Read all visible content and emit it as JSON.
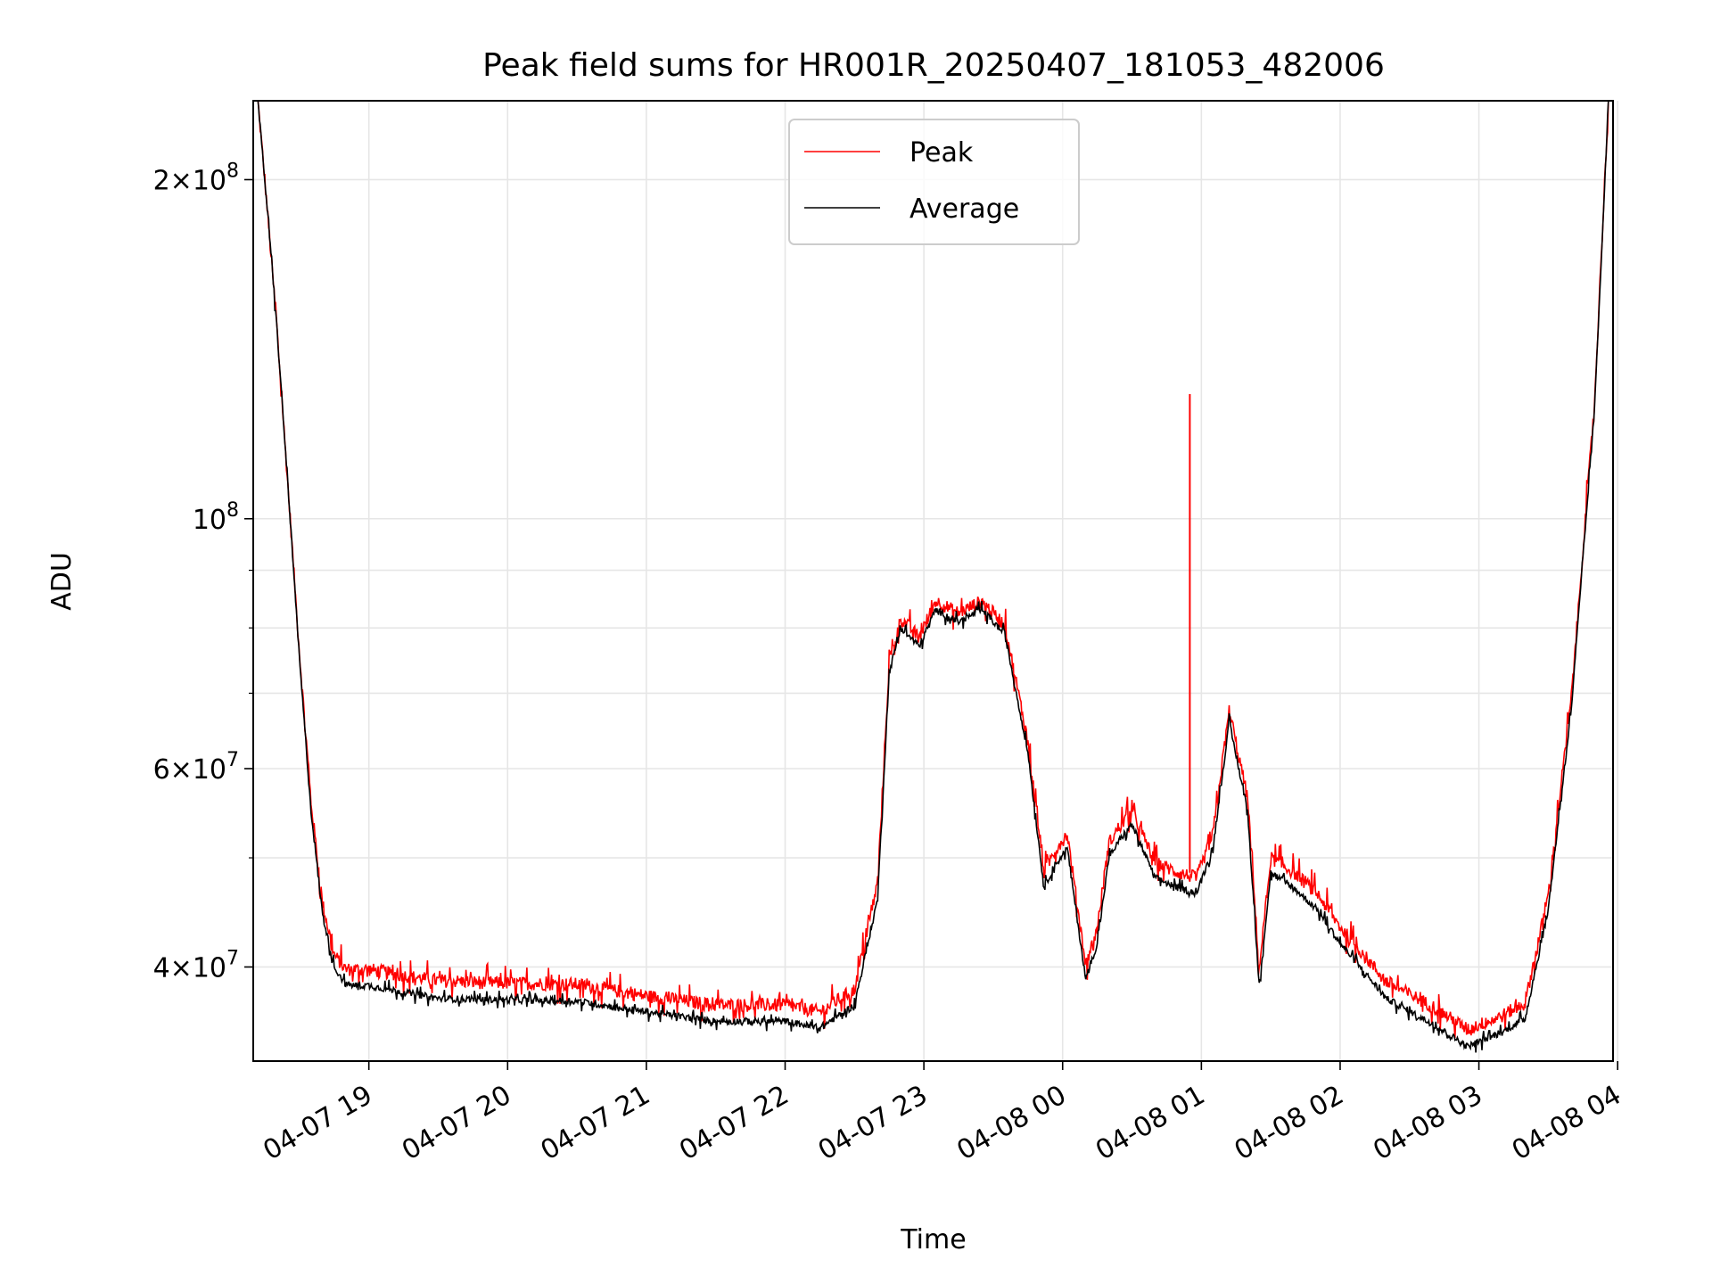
{
  "chart_data": {
    "type": "line",
    "title": "Peak field sums for HR001R_20250407_181053_482006",
    "xlabel": "Time",
    "ylabel": "ADU",
    "yscale": "log",
    "ylim": [
      33000000,
      235000000
    ],
    "xlim": [
      "2025-04-07 18:10",
      "2025-04-08 03:58"
    ],
    "grid": true,
    "legend_position": "top-center",
    "x_ticks": [
      "04-07 19",
      "04-07 20",
      "04-07 21",
      "04-07 22",
      "04-07 23",
      "04-08 00",
      "04-08 01",
      "04-08 02",
      "04-08 03",
      "04-08 04"
    ],
    "y_ticks": [
      {
        "value": 40000000,
        "mant": "4",
        "exp": "7"
      },
      {
        "value": 60000000,
        "mant": "6",
        "exp": "7"
      },
      {
        "value": 100000000,
        "mant": "",
        "exp": "8"
      },
      {
        "value": 200000000,
        "mant": "2",
        "exp": "8"
      }
    ],
    "series": [
      {
        "name": "Peak",
        "color": "#ff0000",
        "role": "peak",
        "spike": {
          "x": "2025-04-08 00:55",
          "y": 129000000
        }
      },
      {
        "name": "Average",
        "color": "#000000",
        "role": "average"
      }
    ],
    "x": [
      "2025-04-07 18:12",
      "2025-04-07 18:15",
      "2025-04-07 18:20",
      "2025-04-07 18:25",
      "2025-04-07 18:30",
      "2025-04-07 18:35",
      "2025-04-07 18:40",
      "2025-04-07 18:45",
      "2025-04-07 18:50",
      "2025-04-07 18:55",
      "2025-04-07 19:00",
      "2025-04-07 19:15",
      "2025-04-07 19:30",
      "2025-04-07 20:00",
      "2025-04-07 20:30",
      "2025-04-07 21:00",
      "2025-04-07 21:30",
      "2025-04-07 21:50",
      "2025-04-07 22:00",
      "2025-04-07 22:15",
      "2025-04-07 22:30",
      "2025-04-07 22:40",
      "2025-04-07 22:45",
      "2025-04-07 22:50",
      "2025-04-07 22:58",
      "2025-04-07 23:05",
      "2025-04-07 23:15",
      "2025-04-07 23:25",
      "2025-04-07 23:35",
      "2025-04-07 23:45",
      "2025-04-07 23:52",
      "2025-04-07 23:56",
      "2025-04-08 00:02",
      "2025-04-08 00:10",
      "2025-04-08 00:15",
      "2025-04-08 00:20",
      "2025-04-08 00:25",
      "2025-04-08 00:30",
      "2025-04-08 00:40",
      "2025-04-08 00:50",
      "2025-04-08 00:58",
      "2025-04-08 01:05",
      "2025-04-08 01:12",
      "2025-04-08 01:20",
      "2025-04-08 01:25",
      "2025-04-08 01:30",
      "2025-04-08 01:40",
      "2025-04-08 01:50",
      "2025-04-08 02:00",
      "2025-04-08 02:20",
      "2025-04-08 02:40",
      "2025-04-08 02:55",
      "2025-04-08 03:10",
      "2025-04-08 03:20",
      "2025-04-08 03:30",
      "2025-04-08 03:40",
      "2025-04-08 03:50",
      "2025-04-08 03:56"
    ],
    "average_values": [
      235000000,
      200000000,
      150000000,
      107000000,
      75000000,
      55000000,
      44500000,
      40000000,
      38600000,
      38500000,
      38500000,
      38000000,
      37500000,
      37400000,
      37300000,
      36500000,
      35800000,
      35800000,
      35800000,
      35300000,
      37000000,
      46000000,
      73000000,
      80000000,
      77000000,
      83000000,
      81000000,
      83000000,
      79000000,
      62000000,
      47000000,
      49000000,
      51000000,
      39000000,
      42000000,
      50000000,
      52000000,
      53500000,
      48000000,
      47000000,
      46500000,
      51000000,
      66000000,
      55000000,
      38500000,
      48500000,
      47000000,
      45000000,
      42000000,
      37500000,
      35600000,
      34000000,
      35000000,
      36000000,
      45000000,
      68000000,
      125000000,
      235000000
    ],
    "peak_values": [
      235000000,
      200000000,
      150000000,
      107000000,
      76000000,
      56000000,
      45500000,
      41000000,
      39800000,
      39800000,
      39800000,
      39300000,
      38900000,
      38700000,
      38600000,
      37700000,
      37000000,
      37000000,
      37000000,
      36500000,
      38200000,
      47500000,
      74500000,
      81500000,
      78500000,
      84500000,
      82500000,
      84500000,
      80500000,
      63500000,
      48500000,
      50500000,
      52500000,
      40200000,
      43300000,
      51500000,
      53500000,
      55000000,
      49500000,
      48500000,
      48000000,
      52500000,
      67500000,
      56500000,
      39800000,
      50000000,
      48500000,
      46500000,
      43400000,
      38800000,
      36900000,
      35200000,
      36200000,
      37200000,
      46300000,
      69500000,
      127000000,
      235000000
    ]
  }
}
